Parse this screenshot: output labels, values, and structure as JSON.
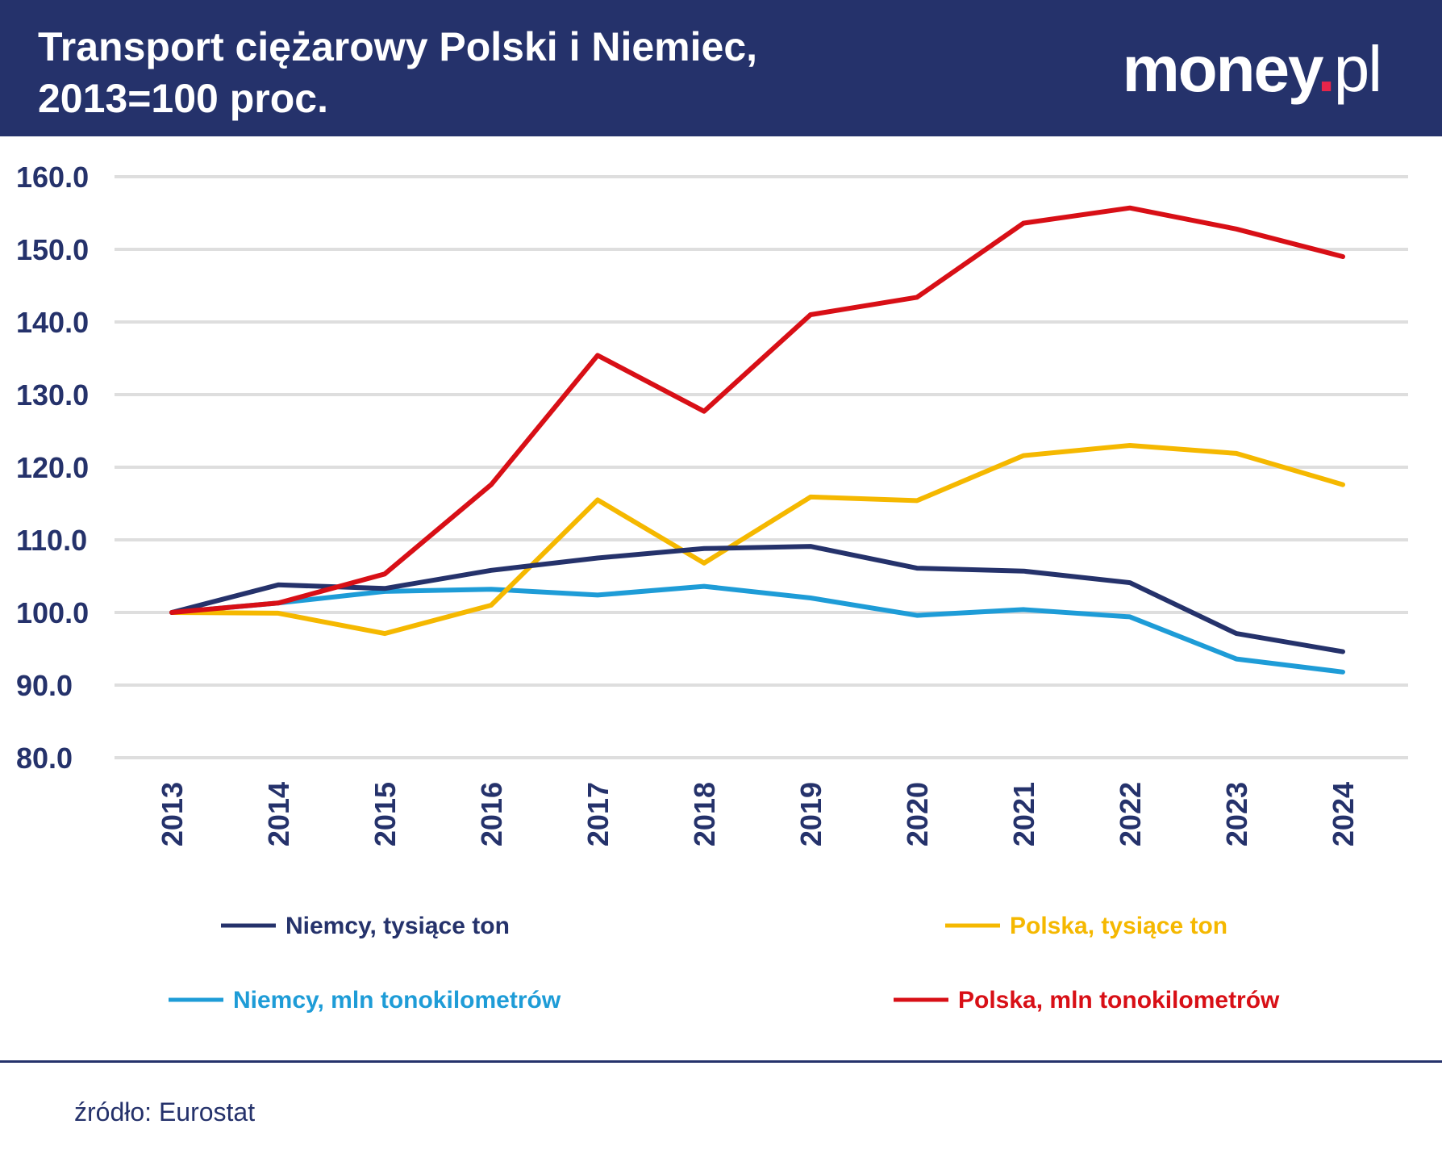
{
  "header": {
    "title_line1": "Transport ciężarowy Polski i Niemiec,",
    "title_line2": "2013=100 proc.",
    "logo_main": "money",
    "logo_dot": ".",
    "logo_suffix": "pl"
  },
  "chart_data": {
    "type": "line",
    "title": "Transport ciężarowy Polski i Niemiec, 2013=100 proc.",
    "x": [
      "2013",
      "2014",
      "2015",
      "2016",
      "2017",
      "2018",
      "2019",
      "2020",
      "2021",
      "2022",
      "2023",
      "2024"
    ],
    "yticks": [
      "80.0",
      "90.0",
      "100.0",
      "110.0",
      "120.0",
      "130.0",
      "140.0",
      "150.0",
      "160.0"
    ],
    "ylim": [
      80,
      160
    ],
    "grid": true,
    "legend_position": "bottom",
    "series": [
      {
        "name": "Niemcy, tysiące ton",
        "color": "#25326b",
        "values": [
          100.0,
          103.8,
          103.3,
          105.8,
          107.5,
          108.8,
          109.1,
          106.1,
          105.7,
          104.1,
          97.1,
          94.6
        ]
      },
      {
        "name": "Polska, tysiące ton",
        "color": "#f5b800",
        "values": [
          100.0,
          99.9,
          97.1,
          101.0,
          115.5,
          106.8,
          115.9,
          115.4,
          121.6,
          123.0,
          121.9,
          117.6
        ]
      },
      {
        "name": "Niemcy, mln tonokilometrów",
        "color": "#1e9cd7",
        "values": [
          100.0,
          101.3,
          102.9,
          103.2,
          102.4,
          103.6,
          102.0,
          99.6,
          100.4,
          99.4,
          93.6,
          91.8
        ]
      },
      {
        "name": "Polska, mln tonokilometrów",
        "color": "#d80f16",
        "values": [
          100.0,
          101.3,
          105.3,
          117.6,
          135.4,
          127.7,
          141.0,
          143.4,
          153.6,
          155.7,
          152.8,
          149.0
        ]
      }
    ]
  },
  "source": "źródło: Eurostat"
}
